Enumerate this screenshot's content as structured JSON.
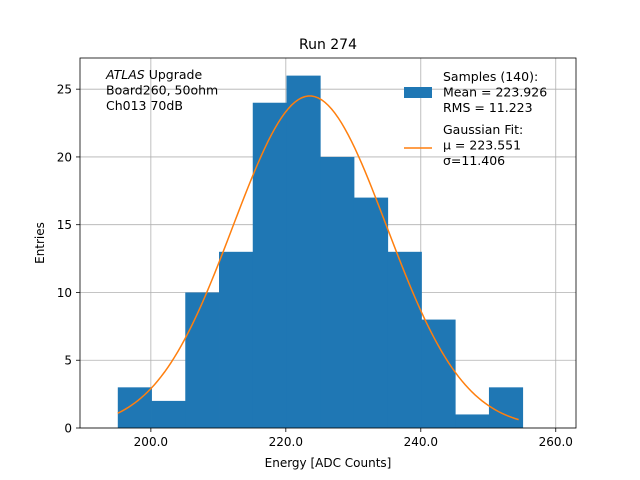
{
  "chart_data": {
    "type": "bar",
    "title": "Run 274",
    "xlabel": "Energy [ADC Counts]",
    "ylabel": "Entries",
    "xlim": [
      189.5,
      263
    ],
    "ylim": [
      0,
      27.3
    ],
    "grid": true,
    "x_ticks": [
      200.0,
      220.0,
      240.0,
      260.0
    ],
    "x_tick_labels": [
      "200.0",
      "220.0",
      "240.0",
      "260.0"
    ],
    "y_ticks": [
      0,
      5,
      10,
      15,
      20,
      25
    ],
    "y_tick_labels": [
      "0",
      "5",
      "10",
      "15",
      "20",
      "25"
    ],
    "histogram": {
      "bin_edges": [
        195.1,
        200.1,
        205.1,
        210.1,
        215.1,
        220.1,
        225.1,
        230.1,
        235.1,
        240.1,
        245.1,
        250.1,
        255.1
      ],
      "counts": [
        3,
        2,
        10,
        13,
        24,
        26,
        20,
        17,
        13,
        8,
        1,
        3
      ],
      "color": "#1f77b4"
    },
    "fit": {
      "mu": 223.551,
      "sigma": 11.406,
      "amplitude": 24.5,
      "x_range": [
        195.1,
        254.5
      ],
      "color": "#ff7f0e"
    },
    "annotation": {
      "lines": [
        {
          "italic": "ATLAS",
          "rest": " Upgrade"
        },
        {
          "italic": "",
          "rest": " Board260, 50ohm"
        },
        {
          "italic": "",
          "rest": " Ch013 70dB"
        }
      ]
    },
    "legend": {
      "placement": "top-right",
      "entries": [
        {
          "kind": "patch",
          "lines": [
            "Samples (140):",
            " Mean = 223.926",
            " RMS = 11.223"
          ]
        },
        {
          "kind": "line",
          "lines": [
            "Gaussian Fit:",
            " μ = 223.551",
            " σ=11.406"
          ]
        }
      ]
    }
  }
}
